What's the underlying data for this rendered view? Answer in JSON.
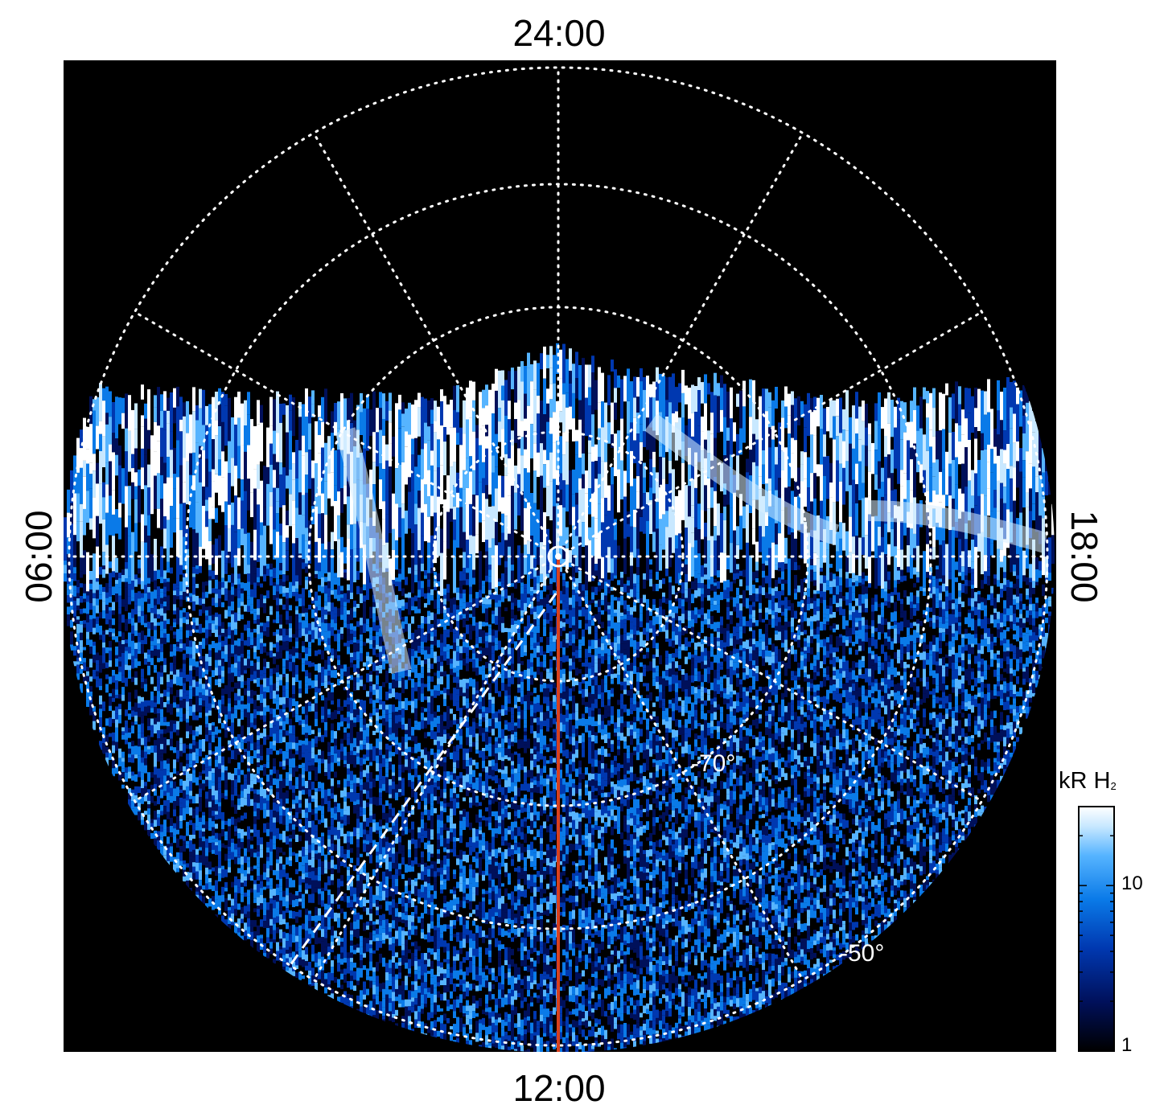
{
  "local_time_labels": {
    "top": "24:00",
    "bottom": "12:00",
    "left": "06:00",
    "right": "18:00"
  },
  "latitude_labels": {
    "inner": "-70°",
    "outer": "-50°"
  },
  "colorbar": {
    "unit_main": "kR H",
    "unit_sub": "2",
    "scale": "log",
    "range": [
      1,
      30
    ],
    "tick_labels": [
      "1",
      "10"
    ]
  },
  "colors": {
    "background": "#000000",
    "grid": "#ffffff",
    "meridian_line": "#d8401e",
    "colormap": [
      "#000000",
      "#00105a",
      "#0038b0",
      "#0a7ae8",
      "#56b4ff",
      "#c8e8ff",
      "#ffffff"
    ]
  },
  "icons": {
    "pole_marker": "circle-dot-icon"
  }
}
